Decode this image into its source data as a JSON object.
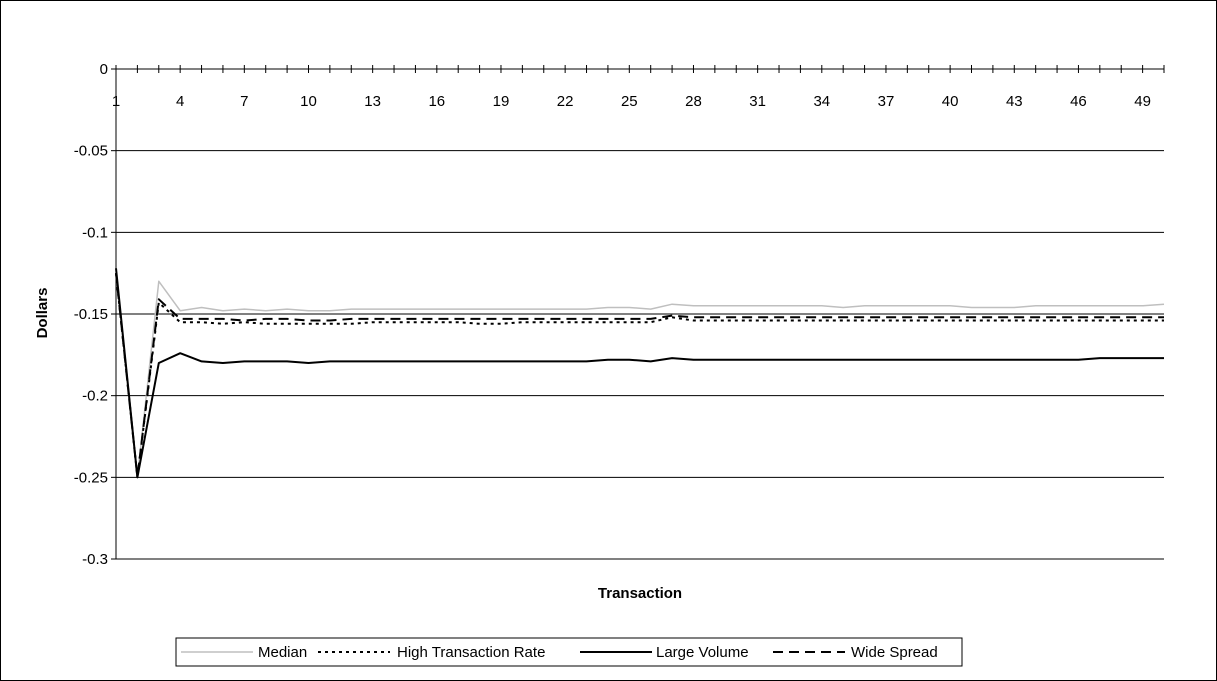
{
  "chart_data": {
    "type": "line",
    "xlabel": "Transaction",
    "ylabel": "Dollars",
    "xlim": [
      1,
      50
    ],
    "ylim": [
      -0.3,
      0
    ],
    "x_tick_labels": [
      "1",
      "4",
      "7",
      "10",
      "13",
      "16",
      "19",
      "22",
      "25",
      "28",
      "31",
      "34",
      "37",
      "40",
      "43",
      "46",
      "49"
    ],
    "y_tick_labels": [
      "0",
      "-0.05",
      "-0.1",
      "-0.15",
      "-0.2",
      "-0.25",
      "-0.3"
    ],
    "y_ticks": [
      0,
      -0.05,
      -0.1,
      -0.15,
      -0.2,
      -0.25,
      -0.3
    ],
    "grid": "horizontal",
    "x_axis_position": "top",
    "legend_position": "bottom",
    "x": [
      1,
      2,
      3,
      4,
      5,
      6,
      7,
      8,
      9,
      10,
      11,
      12,
      13,
      14,
      15,
      16,
      17,
      18,
      19,
      20,
      21,
      22,
      23,
      24,
      25,
      26,
      27,
      28,
      29,
      30,
      31,
      32,
      33,
      34,
      35,
      36,
      37,
      38,
      39,
      40,
      41,
      42,
      43,
      44,
      45,
      46,
      47,
      48,
      49,
      50
    ],
    "series": [
      {
        "name": "Median",
        "color": "#bfbfbf",
        "dash": "solid",
        "values": [
          -0.125,
          -0.25,
          -0.13,
          -0.148,
          -0.146,
          -0.148,
          -0.147,
          -0.148,
          -0.147,
          -0.148,
          -0.148,
          -0.147,
          -0.147,
          -0.147,
          -0.147,
          -0.147,
          -0.147,
          -0.147,
          -0.147,
          -0.147,
          -0.147,
          -0.147,
          -0.147,
          -0.146,
          -0.146,
          -0.147,
          -0.144,
          -0.145,
          -0.145,
          -0.145,
          -0.145,
          -0.145,
          -0.145,
          -0.145,
          -0.146,
          -0.145,
          -0.145,
          -0.145,
          -0.145,
          -0.145,
          -0.146,
          -0.146,
          -0.146,
          -0.145,
          -0.145,
          -0.145,
          -0.145,
          -0.145,
          -0.145,
          -0.144
        ]
      },
      {
        "name": "High Transaction Rate",
        "color": "#000000",
        "dash": "dotted",
        "values": [
          -0.125,
          -0.25,
          -0.143,
          -0.155,
          -0.155,
          -0.156,
          -0.155,
          -0.156,
          -0.156,
          -0.156,
          -0.156,
          -0.156,
          -0.155,
          -0.155,
          -0.155,
          -0.155,
          -0.155,
          -0.156,
          -0.156,
          -0.155,
          -0.155,
          -0.155,
          -0.155,
          -0.155,
          -0.155,
          -0.155,
          -0.152,
          -0.154,
          -0.154,
          -0.154,
          -0.154,
          -0.154,
          -0.154,
          -0.154,
          -0.154,
          -0.154,
          -0.154,
          -0.154,
          -0.154,
          -0.154,
          -0.154,
          -0.154,
          -0.154,
          -0.154,
          -0.154,
          -0.154,
          -0.154,
          -0.154,
          -0.154,
          -0.154
        ]
      },
      {
        "name": "Large Volume",
        "color": "#000000",
        "dash": "solid",
        "values": [
          -0.122,
          -0.25,
          -0.18,
          -0.174,
          -0.179,
          -0.18,
          -0.179,
          -0.179,
          -0.179,
          -0.18,
          -0.179,
          -0.179,
          -0.179,
          -0.179,
          -0.179,
          -0.179,
          -0.179,
          -0.179,
          -0.179,
          -0.179,
          -0.179,
          -0.179,
          -0.179,
          -0.178,
          -0.178,
          -0.179,
          -0.177,
          -0.178,
          -0.178,
          -0.178,
          -0.178,
          -0.178,
          -0.178,
          -0.178,
          -0.178,
          -0.178,
          -0.178,
          -0.178,
          -0.178,
          -0.178,
          -0.178,
          -0.178,
          -0.178,
          -0.178,
          -0.178,
          -0.178,
          -0.177,
          -0.177,
          -0.177,
          -0.177
        ]
      },
      {
        "name": "Wide Spread",
        "color": "#000000",
        "dash": "dashed",
        "values": [
          -0.125,
          -0.25,
          -0.141,
          -0.153,
          -0.153,
          -0.153,
          -0.154,
          -0.153,
          -0.153,
          -0.154,
          -0.154,
          -0.153,
          -0.153,
          -0.153,
          -0.153,
          -0.153,
          -0.153,
          -0.153,
          -0.153,
          -0.153,
          -0.153,
          -0.153,
          -0.153,
          -0.153,
          -0.153,
          -0.153,
          -0.151,
          -0.152,
          -0.152,
          -0.152,
          -0.152,
          -0.152,
          -0.152,
          -0.152,
          -0.152,
          -0.152,
          -0.152,
          -0.152,
          -0.152,
          -0.152,
          -0.152,
          -0.152,
          -0.152,
          -0.152,
          -0.152,
          -0.152,
          -0.152,
          -0.152,
          -0.152,
          -0.152
        ]
      }
    ]
  }
}
